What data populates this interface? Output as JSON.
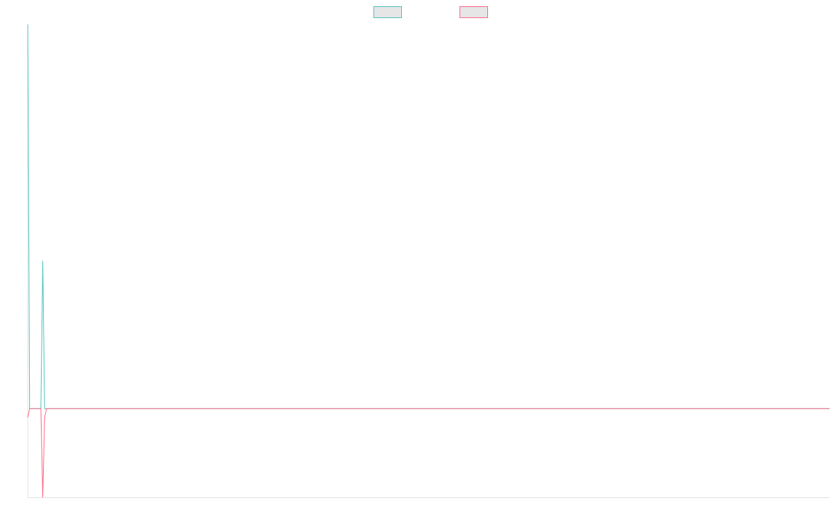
{
  "chart_data": {
    "type": "line",
    "x": [
      0,
      1,
      7,
      8,
      9,
      10,
      428
    ],
    "xlim": [
      0,
      428
    ],
    "ylim": [
      -0.3,
      1.3
    ],
    "grid": false,
    "legend": "top",
    "series": [
      {
        "color": "#4bc0c0",
        "values": [
          1.3,
          0,
          0,
          0.5,
          0,
          0,
          0
        ]
      },
      {
        "color": "#ff6384",
        "values": [
          -0.03,
          0,
          0,
          -0.3,
          -0.03,
          0,
          0
        ]
      }
    ]
  }
}
